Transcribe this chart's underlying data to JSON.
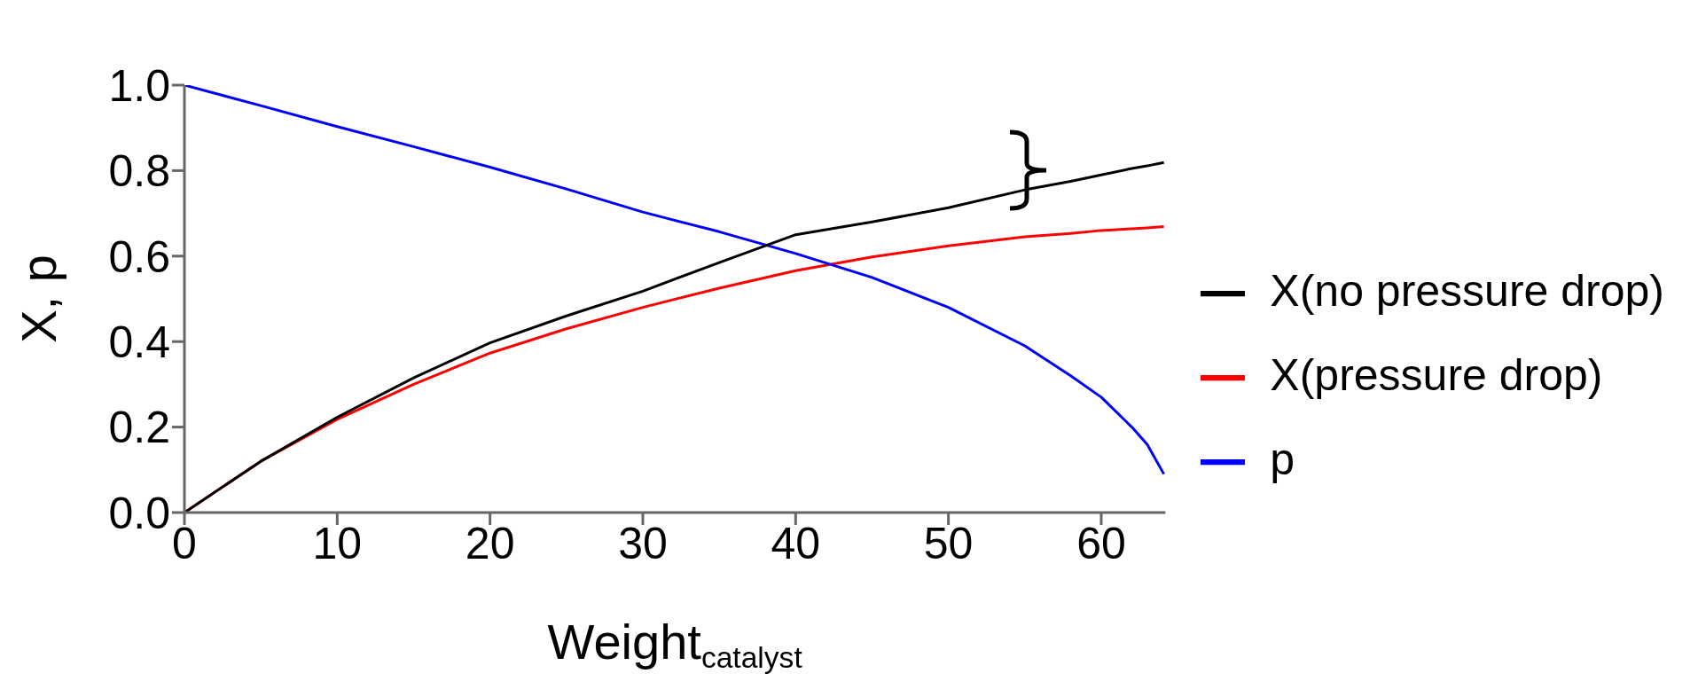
{
  "chart_data": {
    "type": "line",
    "xlabel": "Weight$_{catalyst}$",
    "ylabel": "X, p",
    "x": [
      0,
      5,
      10,
      15,
      20,
      25,
      30,
      35,
      40,
      45,
      50,
      55,
      58,
      60,
      62,
      63,
      64.1
    ],
    "series": [
      {
        "name": "X(pressure drop)",
        "color": "#ff0000",
        "values": [
          0,
          0.12,
          0.218,
          0.3,
          0.373,
          0.43,
          0.48,
          0.525,
          0.566,
          0.598,
          0.624,
          0.645,
          0.653,
          0.66,
          0.664,
          0.666,
          0.669
        ]
      },
      {
        "name": "p",
        "color": "#0000ff",
        "values": [
          1,
          0.952,
          0.903,
          0.856,
          0.808,
          0.757,
          0.703,
          0.657,
          0.606,
          0.55,
          0.48,
          0.39,
          0.32,
          0.27,
          0.2,
          0.16,
          0.09
        ]
      },
      {
        "name": "X(no pressure drop)",
        "color": "#000000",
        "values": [
          0,
          0.12,
          0.223,
          0.315,
          0.397,
          0.46,
          0.518,
          0.585,
          0.65,
          0.68,
          0.713,
          0.755,
          0.775,
          0.79,
          0.805,
          0.811,
          0.819
        ]
      }
    ],
    "xlim": [
      0,
      64.2
    ],
    "xticks": [
      0,
      10,
      20,
      30,
      40,
      50,
      60
    ],
    "ylim": [
      0,
      1
    ],
    "yticks": [
      {
        "value": 0,
        "label": "0.0"
      },
      0.2,
      0.4,
      0.6,
      0.8,
      {
        "value": 1,
        "label": "1.0"
      }
    ],
    "legend": "right",
    "marker": "none",
    "line_style": "solid",
    "grid": false
  }
}
